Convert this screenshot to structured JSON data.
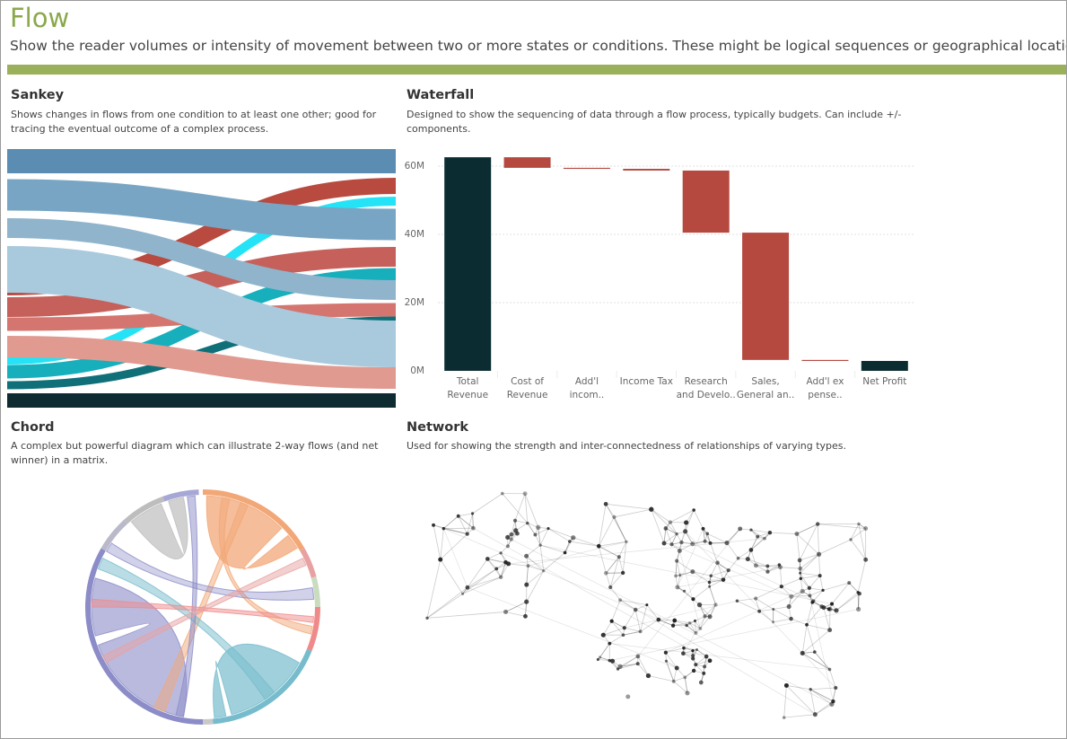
{
  "header": {
    "title": "Flow",
    "subtitle": "Show the reader volumes or intensity of movement between two or more states or conditions. These might be logical sequences or geographical locations."
  },
  "sections": [
    {
      "title": "Sankey",
      "description": "Shows changes in flows from one condition to at least one other; good for tracing the eventual outcome of a complex process."
    },
    {
      "title": "Waterfall",
      "description": "Designed to show the sequencing of data through a flow process, typically budgets. Can include +/- components."
    },
    {
      "title": "Chord",
      "description": "A complex but powerful diagram which can illustrate 2-way flows (and net winner) in a matrix."
    },
    {
      "title": "Network",
      "description": "Used for showing the strength and inter-connectedness of relationships of varying types."
    }
  ],
  "chart_data": {
    "type": "waterfall",
    "categories": [
      "Total Revenue",
      "Cost of Revenue",
      "Add'l incom..",
      "Income Tax",
      "Research and Develo..",
      "Sales, General an..",
      "Add'l ex pense..",
      "Net Profit"
    ],
    "values": [
      62.6,
      -3.1,
      -0.3,
      -0.5,
      -18.2,
      -37.3,
      -0.3,
      2.9
    ],
    "totals": [
      true,
      false,
      false,
      false,
      false,
      false,
      false,
      true
    ],
    "total_color": "#0b2d32",
    "delta_color": "#b5483f",
    "ylim": [
      0,
      64
    ],
    "yticks": [
      {
        "value": 0,
        "label": "0M"
      },
      {
        "value": 20,
        "label": "20M"
      },
      {
        "value": 40,
        "label": "40M"
      },
      {
        "value": 60,
        "label": "60M"
      }
    ],
    "grid": true
  }
}
